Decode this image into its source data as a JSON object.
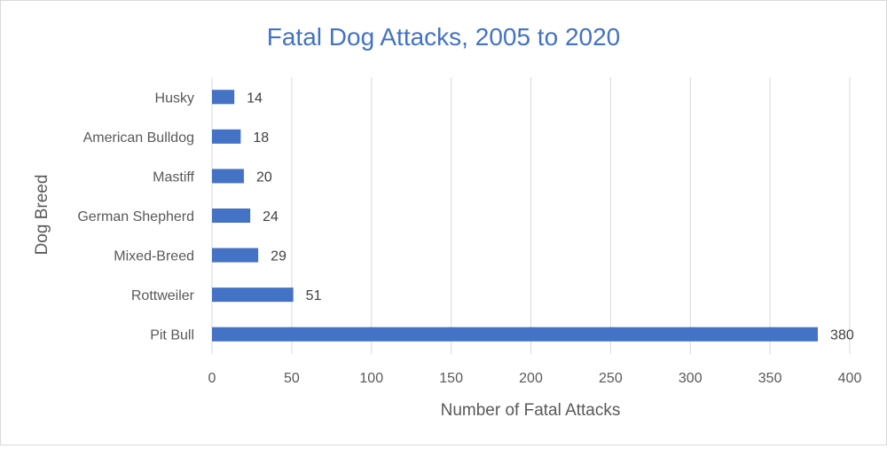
{
  "chart_data": {
    "type": "bar",
    "orientation": "horizontal",
    "title": "Fatal Dog Attacks, 2005 to 2020",
    "xlabel": "Number of Fatal Attacks",
    "ylabel": "Dog Breed",
    "categories": [
      "Pit Bull",
      "Rottweiler",
      "Mixed-Breed",
      "German Shepherd",
      "Mastiff",
      "American Bulldog",
      "Husky"
    ],
    "values": [
      380,
      51,
      29,
      24,
      20,
      18,
      14
    ],
    "data_labels": [
      "380",
      "51",
      "29",
      "24",
      "20",
      "18",
      "14"
    ],
    "xlim": [
      0,
      400
    ],
    "xticks": [
      0,
      50,
      100,
      150,
      200,
      250,
      300,
      350,
      400
    ],
    "grid": true,
    "legend": "none",
    "bar_color": "#4472c4",
    "title_color": "#4472c4"
  }
}
